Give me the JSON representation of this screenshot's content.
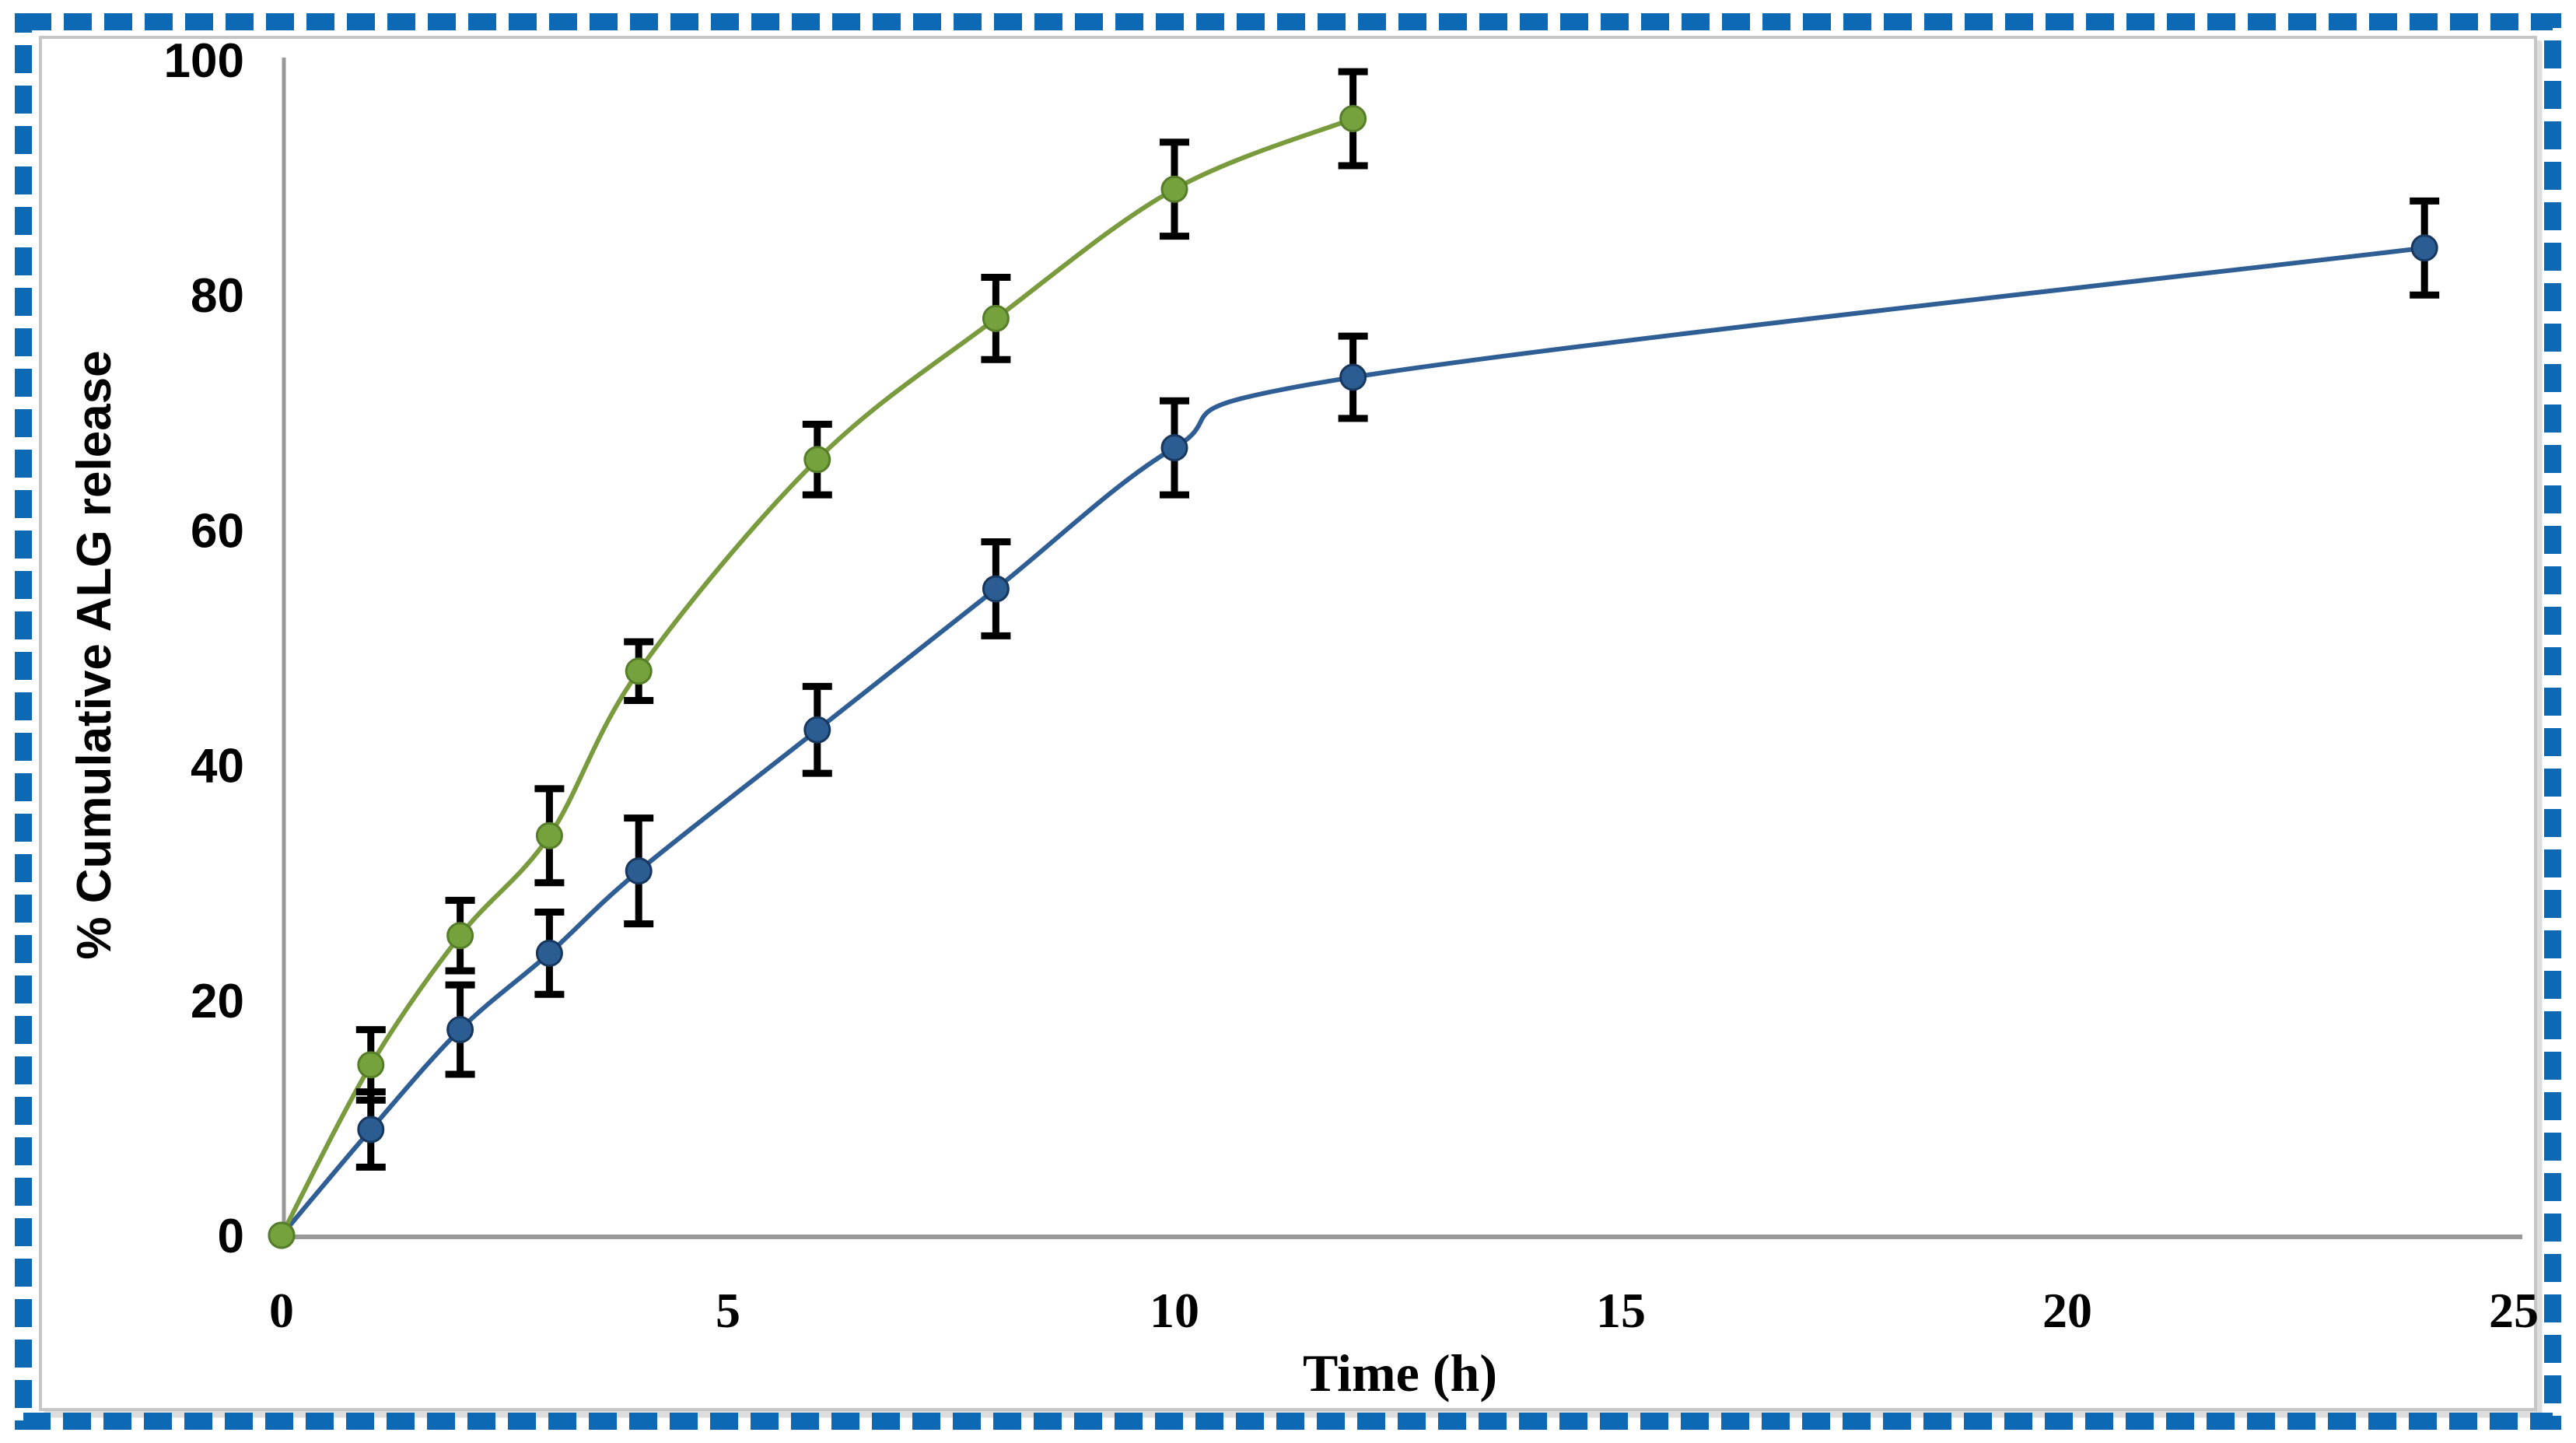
{
  "frame": {
    "background": "#ffffff",
    "outer_border_color": "#0e69b4",
    "inner_border_color": "#c6c6c6",
    "inner_shadow_color": "#dedede"
  },
  "axes": {
    "axis_color": "#999999",
    "tick_label_color": "#000000"
  },
  "chart_data": {
    "type": "line",
    "title": "",
    "xlabel": "Time (h)",
    "ylabel": "% Cumulative ALG release",
    "xlim": [
      0,
      25
    ],
    "ylim": [
      0,
      100
    ],
    "x_ticks": [
      0,
      5,
      10,
      15,
      20,
      25
    ],
    "y_ticks": [
      0,
      20,
      40,
      60,
      80,
      100
    ],
    "grid": false,
    "legend_position": "none",
    "error_bar_color": "#000000",
    "marker_shape": "circle",
    "series": [
      {
        "name": "blue-series",
        "line_color": "#2e5e94",
        "marker_fill": "#2b5c92",
        "marker_edge": "#17375e",
        "x": [
          0,
          1,
          2,
          3,
          4,
          6,
          8,
          10,
          12,
          24
        ],
        "y": [
          0,
          9,
          17.5,
          24,
          31,
          43,
          55,
          67,
          73,
          84
        ],
        "yerr": [
          0,
          3.2,
          3.8,
          3.5,
          4.5,
          3.7,
          4,
          4,
          3.5,
          4
        ]
      },
      {
        "name": "green-series",
        "line_color": "#7a9a3e",
        "marker_fill": "#76a23e",
        "marker_edge": "#567d28",
        "x": [
          0,
          1,
          2,
          3,
          4,
          6,
          8,
          10,
          12
        ],
        "y": [
          0,
          14.5,
          25.5,
          34,
          48,
          66,
          78,
          89,
          95
        ],
        "yerr": [
          0,
          3,
          3,
          4,
          2.5,
          3,
          3.5,
          4,
          4
        ]
      }
    ]
  }
}
